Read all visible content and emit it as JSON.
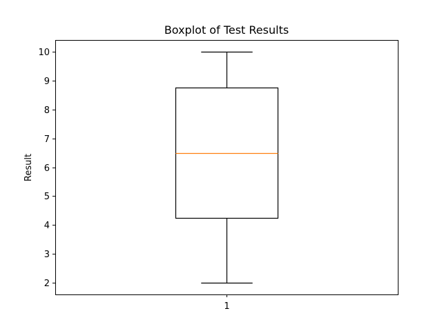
{
  "chart_data": {
    "type": "boxplot",
    "title": "Boxplot of Test Results",
    "xlabel": "",
    "ylabel": "Result",
    "categories": [
      "1"
    ],
    "boxes": [
      {
        "category": "1",
        "whisker_low": 2,
        "q1": 4.25,
        "median": 6.5,
        "q3": 8.75,
        "whisker_high": 10
      }
    ],
    "ylim": [
      1.6,
      10.4
    ],
    "yticks": [
      2,
      3,
      4,
      5,
      6,
      7,
      8,
      9,
      10
    ],
    "grid": false,
    "colors": {
      "box": "#000000",
      "median": "#ff7f0e",
      "whisker": "#000000",
      "axes": "#000000"
    }
  }
}
